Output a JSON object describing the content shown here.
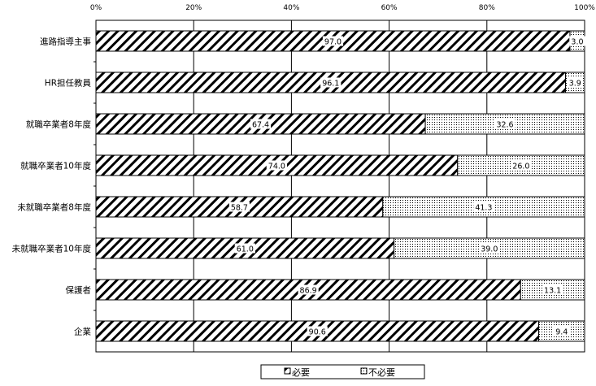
{
  "chart_data": {
    "type": "bar",
    "orientation": "horizontal",
    "stacked": "percent",
    "categories": [
      "進路指導主事",
      "HR担任教員",
      "就職卒業者8年度",
      "就職卒業者10年度",
      "未就職卒業者8年度",
      "未就職卒業者10年度",
      "保護者",
      "企業"
    ],
    "series": [
      {
        "name": "必要",
        "values": [
          97.0,
          96.1,
          67.4,
          74.0,
          58.7,
          61.0,
          86.9,
          90.6
        ],
        "pattern": "diagonal-hatch"
      },
      {
        "name": "不必要",
        "values": [
          3.0,
          3.9,
          32.6,
          26.0,
          41.3,
          39.0,
          13.1,
          9.4
        ],
        "pattern": "dots"
      }
    ],
    "xticks": [
      "0%",
      "20%",
      "40%",
      "60%",
      "80%",
      "100%"
    ],
    "xlim": [
      0,
      100
    ],
    "grid": true,
    "legend": "bottom",
    "colors": {
      "stroke": "#000000",
      "background": "#ffffff"
    }
  }
}
